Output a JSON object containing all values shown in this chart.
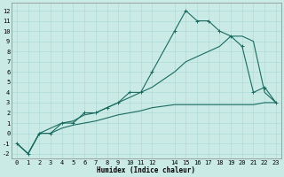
{
  "xlabel": "Humidex (Indice chaleur)",
  "xlim": [
    -0.5,
    23.5
  ],
  "ylim": [
    -2.5,
    12.8
  ],
  "xticks": [
    0,
    1,
    2,
    3,
    4,
    5,
    6,
    7,
    8,
    9,
    10,
    11,
    12,
    14,
    15,
    16,
    17,
    18,
    19,
    20,
    21,
    22,
    23
  ],
  "yticks": [
    -2,
    -1,
    0,
    1,
    2,
    3,
    4,
    5,
    6,
    7,
    8,
    9,
    10,
    11,
    12
  ],
  "bg_color": "#caeae6",
  "grid_color": "#a8d8d4",
  "line_color": "#1a6b60",
  "line1_x": [
    0,
    1,
    2,
    3,
    4,
    5,
    6,
    7,
    8,
    9,
    10,
    11,
    12,
    14,
    15,
    16,
    17,
    18,
    19,
    20,
    21,
    22,
    23
  ],
  "line1_y": [
    -1.0,
    -2.0,
    0.0,
    0.0,
    1.0,
    1.0,
    2.0,
    2.0,
    2.5,
    3.0,
    4.0,
    4.0,
    6.0,
    10.0,
    12.0,
    11.0,
    11.0,
    10.0,
    9.5,
    8.5,
    4.0,
    4.5,
    3.0
  ],
  "line2_x": [
    0,
    1,
    2,
    3,
    4,
    5,
    6,
    7,
    8,
    9,
    10,
    11,
    12,
    14,
    15,
    16,
    17,
    18,
    19,
    20,
    21,
    22,
    23
  ],
  "line2_y": [
    -1.0,
    -2.0,
    0.0,
    0.5,
    1.0,
    1.2,
    1.8,
    2.0,
    2.5,
    3.0,
    3.5,
    4.0,
    4.5,
    6.0,
    7.0,
    7.5,
    8.0,
    8.5,
    9.5,
    9.5,
    9.0,
    4.0,
    3.0
  ],
  "line3_x": [
    0,
    1,
    2,
    3,
    4,
    5,
    6,
    7,
    8,
    9,
    10,
    11,
    12,
    14,
    15,
    16,
    17,
    18,
    19,
    20,
    21,
    22,
    23
  ],
  "line3_y": [
    -1.0,
    -2.0,
    0.0,
    0.0,
    0.5,
    0.8,
    1.0,
    1.2,
    1.5,
    1.8,
    2.0,
    2.2,
    2.5,
    2.8,
    2.8,
    2.8,
    2.8,
    2.8,
    2.8,
    2.8,
    2.8,
    3.0,
    3.0
  ],
  "lw": 0.8,
  "marker_size": 2.5,
  "xlabel_fontsize": 5.5,
  "tick_fontsize": 5.0
}
